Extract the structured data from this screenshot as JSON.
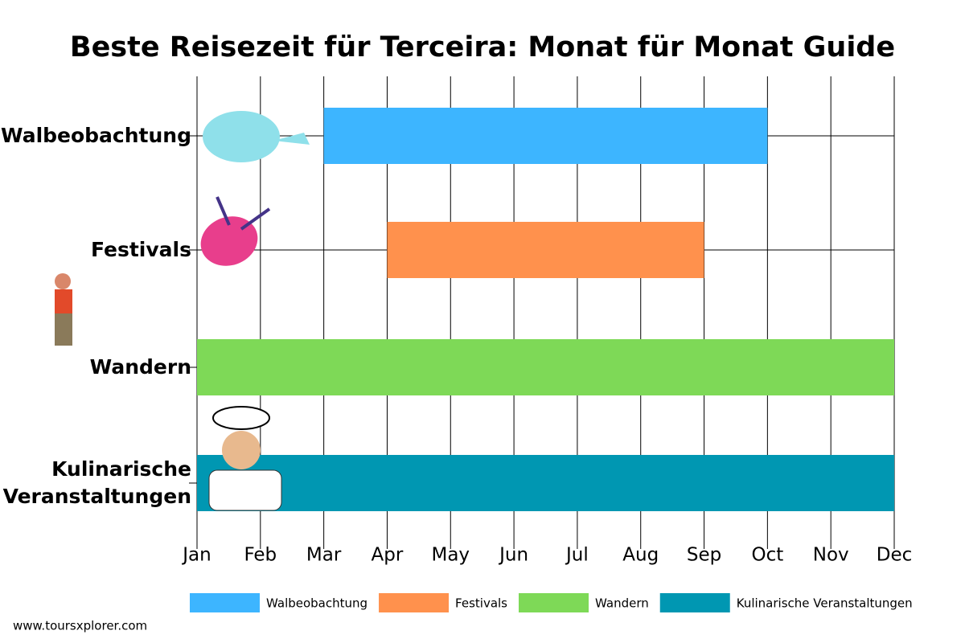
{
  "chart_data": {
    "type": "gantt",
    "title": "Beste Reisezeit für Terceira: Monat für Monat Guide",
    "source": "www.toursxplorer.com",
    "xlim": [
      0,
      11
    ],
    "xticks": [
      {
        "value": 0,
        "label": "Jan"
      },
      {
        "value": 1,
        "label": "Feb"
      },
      {
        "value": 2,
        "label": "Mar"
      },
      {
        "value": 3,
        "label": "Apr"
      },
      {
        "value": 4,
        "label": "May"
      },
      {
        "value": 5,
        "label": "Jun"
      },
      {
        "value": 6,
        "label": "Jul"
      },
      {
        "value": 7,
        "label": "Aug"
      },
      {
        "value": 8,
        "label": "Sep"
      },
      {
        "value": 9,
        "label": "Oct"
      },
      {
        "value": 10,
        "label": "Nov"
      },
      {
        "value": 11,
        "label": "Dec"
      }
    ],
    "grid": true,
    "tasks": [
      {
        "name": "Walbeobachtung",
        "color": "#3db5ff",
        "start": 2,
        "end": 9
      },
      {
        "name": "Festivals",
        "color": "#ff914d",
        "start": 3,
        "end": 8
      },
      {
        "name": "Wandern",
        "color": "#7ed957",
        "start": 0,
        "end": 11
      },
      {
        "name": "Kulinarische Veranstaltungen",
        "color": "#0097b2",
        "start": 0,
        "end": 11
      }
    ],
    "legend": "bottom"
  }
}
